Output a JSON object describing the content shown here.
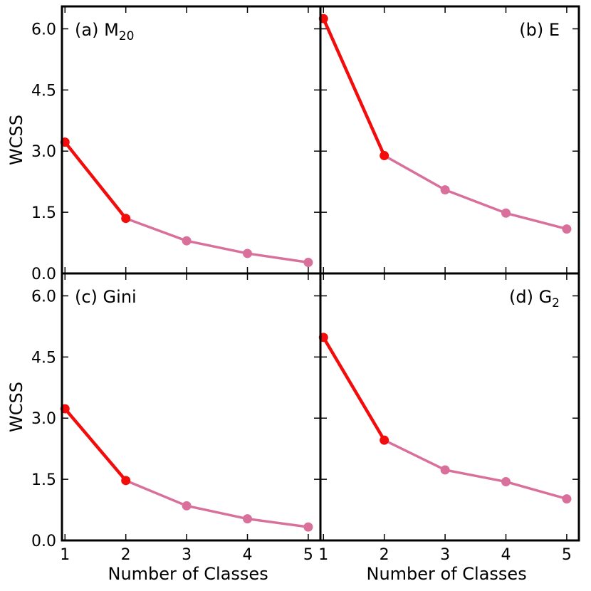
{
  "colors": {
    "steep_segment": "#f20c0c",
    "shallow_segment": "#d9709c",
    "axes": "#000000",
    "background": "#ffffff"
  },
  "shared_axes": {
    "xlabel": "Number of Classes",
    "ylabel": "WCSS",
    "x_ticks": [
      1,
      2,
      3,
      4,
      5
    ],
    "x_tick_labels": [
      "1",
      "2",
      "3",
      "4",
      "5"
    ],
    "y_ticks": [
      0,
      1.5,
      3,
      4.5,
      6
    ],
    "y_tick_labels": [
      "0.0",
      "1.5",
      "3.0",
      "4.5",
      "6.0"
    ],
    "xlim": [
      0.95,
      5.2
    ],
    "ylim": [
      0,
      6.55
    ]
  },
  "chart_data": [
    {
      "type": "line",
      "panel": "a",
      "label_prefix": "(a) M",
      "label_subscript": "20",
      "label_position": "top-left",
      "xlabel": "",
      "ylabel": "WCSS",
      "x": [
        1,
        2,
        3,
        4,
        5
      ],
      "values": [
        3.22,
        1.35,
        0.8,
        0.49,
        0.27
      ],
      "highlight_until_index": 1,
      "xlim": [
        0.95,
        5.2
      ],
      "ylim": [
        0,
        6.55
      ],
      "grid": false
    },
    {
      "type": "line",
      "panel": "b",
      "label_prefix": "(b) E",
      "label_subscript": "",
      "label_position": "top-right",
      "xlabel": "",
      "ylabel": "",
      "x": [
        1,
        2,
        3,
        4,
        5
      ],
      "values": [
        6.25,
        2.89,
        2.05,
        1.48,
        1.09
      ],
      "highlight_until_index": 1,
      "xlim": [
        0.95,
        5.2
      ],
      "ylim": [
        0,
        6.55
      ],
      "grid": false
    },
    {
      "type": "line",
      "panel": "c",
      "label_prefix": "(c) Gini",
      "label_subscript": "",
      "label_position": "top-left",
      "xlabel": "Number of Classes",
      "ylabel": "WCSS",
      "x": [
        1,
        2,
        3,
        4,
        5
      ],
      "values": [
        3.23,
        1.47,
        0.85,
        0.53,
        0.33
      ],
      "highlight_until_index": 1,
      "xlim": [
        0.95,
        5.2
      ],
      "ylim": [
        0,
        6.55
      ],
      "grid": false
    },
    {
      "type": "line",
      "panel": "d",
      "label_prefix": "(d) G",
      "label_subscript": "2",
      "label_position": "top-right",
      "xlabel": "Number of Classes",
      "ylabel": "",
      "x": [
        1,
        2,
        3,
        4,
        5
      ],
      "values": [
        4.98,
        2.46,
        1.73,
        1.44,
        1.02
      ],
      "highlight_until_index": 1,
      "xlim": [
        0.95,
        5.2
      ],
      "ylim": [
        0,
        6.55
      ],
      "grid": false
    }
  ]
}
